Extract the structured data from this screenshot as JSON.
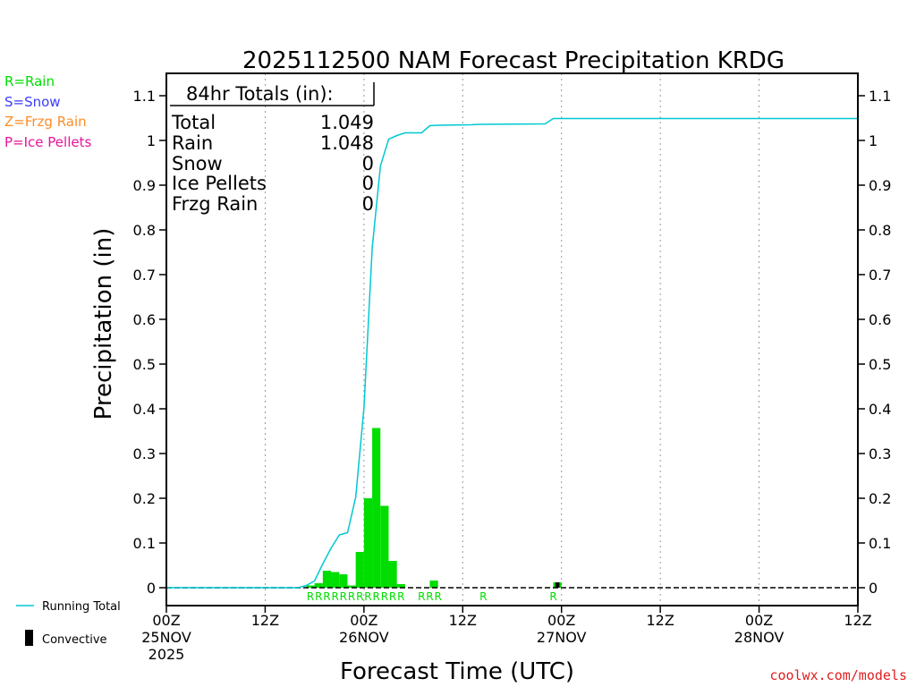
{
  "chart_data": {
    "type": "bar",
    "title": "2025112500 NAM Forecast Precipitation KRDG",
    "xlabel": "Forecast Time (UTC)",
    "ylabel": "Precipitation (in)",
    "ylim": [
      -0.04,
      1.15
    ],
    "xlim_hours": [
      0,
      84
    ],
    "y_ticks": [
      "0",
      "0.1",
      "0.2",
      "0.3",
      "0.4",
      "0.5",
      "0.6",
      "0.7",
      "0.8",
      "0.9",
      "1",
      "1.1"
    ],
    "x_ticks": [
      {
        "hour": 0,
        "line1": "00Z",
        "line2": "25NOV",
        "line3": "2025"
      },
      {
        "hour": 12,
        "line1": "12Z",
        "line2": "",
        "line3": ""
      },
      {
        "hour": 24,
        "line1": "00Z",
        "line2": "26NOV",
        "line3": ""
      },
      {
        "hour": 36,
        "line1": "12Z",
        "line2": "",
        "line3": ""
      },
      {
        "hour": 48,
        "line1": "00Z",
        "line2": "27NOV",
        "line3": ""
      },
      {
        "hour": 60,
        "line1": "12Z",
        "line2": "",
        "line3": ""
      },
      {
        "hour": 72,
        "line1": "00Z",
        "line2": "28NOV",
        "line3": ""
      },
      {
        "hour": 84,
        "line1": "12Z",
        "line2": "",
        "line3": ""
      }
    ],
    "precip_bars": {
      "hours": [
        17,
        18,
        19,
        20,
        21,
        22,
        23,
        24,
        25,
        26,
        27,
        28,
        32,
        47
      ],
      "values": [
        0.005,
        0.01,
        0.038,
        0.035,
        0.03,
        0.005,
        0.08,
        0.2,
        0.357,
        0.183,
        0.06,
        0.008,
        0.016,
        0.012
      ]
    },
    "convective_bars": {
      "hours": [
        47
      ],
      "values": [
        0.012
      ]
    },
    "running_total": {
      "name": "Running Total",
      "hours": [
        0,
        16,
        17,
        18,
        19,
        20,
        21,
        22,
        23,
        24,
        25,
        26,
        27,
        28,
        29,
        30,
        31,
        32,
        33,
        37,
        38,
        46,
        47,
        48,
        84
      ],
      "values": [
        0,
        0,
        0.005,
        0.015,
        0.053,
        0.088,
        0.118,
        0.123,
        0.203,
        0.403,
        0.76,
        0.943,
        1.003,
        1.011,
        1.017,
        1.017,
        1.017,
        1.033,
        1.034,
        1.035,
        1.036,
        1.037,
        1.049,
        1.049,
        1.049
      ]
    },
    "ptype_markers": [
      {
        "hour": 17.5,
        "label": "R"
      },
      {
        "hour": 18.5,
        "label": "R"
      },
      {
        "hour": 19.5,
        "label": "R"
      },
      {
        "hour": 20.5,
        "label": "R"
      },
      {
        "hour": 21.5,
        "label": "R"
      },
      {
        "hour": 22.5,
        "label": "R"
      },
      {
        "hour": 23.5,
        "label": "R"
      },
      {
        "hour": 24.5,
        "label": "R"
      },
      {
        "hour": 25.5,
        "label": "R"
      },
      {
        "hour": 26.5,
        "label": "R"
      },
      {
        "hour": 27.5,
        "label": "R"
      },
      {
        "hour": 28.5,
        "label": "R"
      },
      {
        "hour": 31.0,
        "label": "R"
      },
      {
        "hour": 32.0,
        "label": "R"
      },
      {
        "hour": 33.0,
        "label": "R"
      },
      {
        "hour": 38.5,
        "label": "R"
      },
      {
        "hour": 47.0,
        "label": "R"
      }
    ],
    "grid": "vertical-dotted",
    "colors": {
      "rain": "#00dd00",
      "convective": "#000000",
      "running_total": "#00c8d2",
      "snow": "#3c3cff",
      "frzg": "#ff8c28",
      "ice": "#e6149b"
    }
  },
  "totals": {
    "header": "84hr Totals (in):",
    "rows": [
      {
        "label": "Total",
        "value": "1.049"
      },
      {
        "label": "Rain",
        "value": "1.048"
      },
      {
        "label": "Snow",
        "value": "0"
      },
      {
        "label": "Ice Pellets",
        "value": "0"
      },
      {
        "label": "Frzg Rain",
        "value": "0"
      }
    ]
  },
  "ptype_legend": [
    {
      "text": "R=Rain",
      "color": "#00dd00"
    },
    {
      "text": "S=Snow",
      "color": "#3c3cff"
    },
    {
      "text": "Z=Frzg Rain",
      "color": "#ff8c28"
    },
    {
      "text": "P=Ice Pellets",
      "color": "#e6149b"
    }
  ],
  "bottom_legend": {
    "running_total": "Running Total",
    "convective": "Convective"
  },
  "credit": "coolwx.com/models"
}
